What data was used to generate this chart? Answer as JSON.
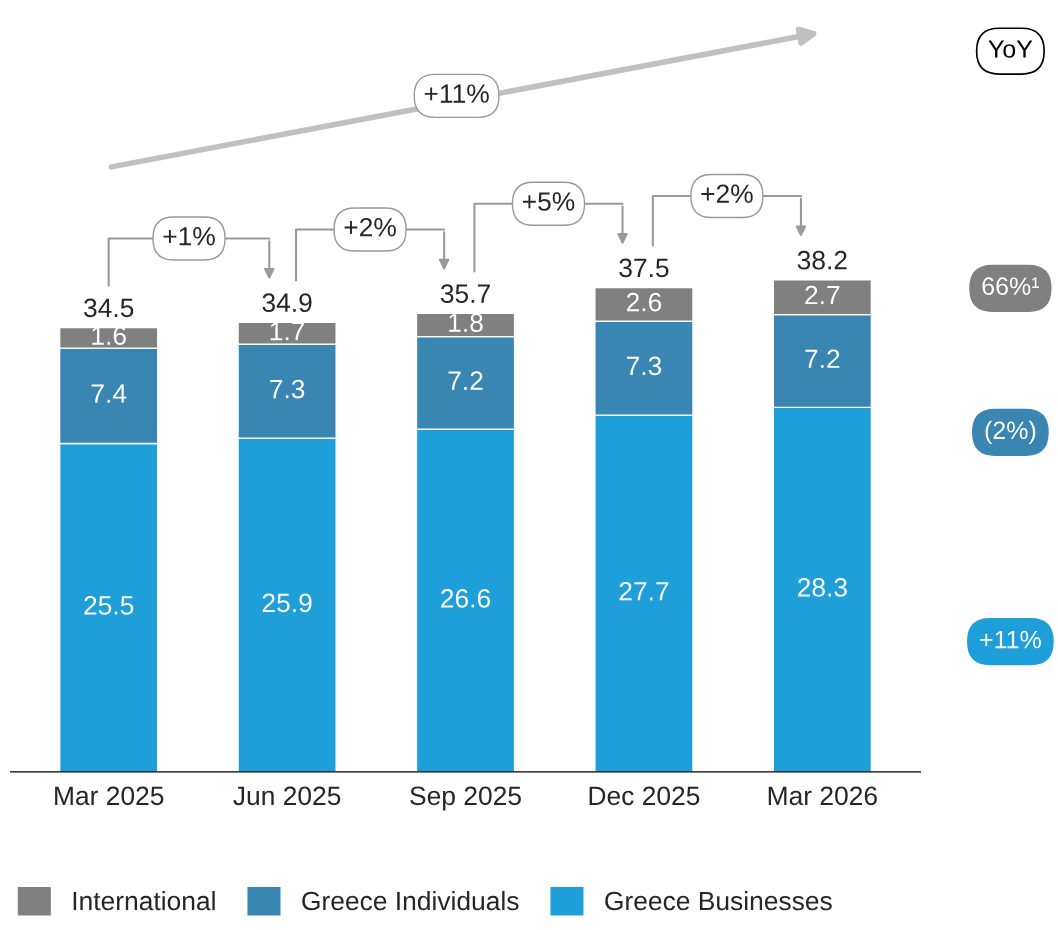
{
  "chart_data": {
    "type": "bar",
    "stacked": true,
    "data_labels": true,
    "legend": "bottom",
    "grid": false,
    "categories": [
      "Mar 2025",
      "Jun 2025",
      "Sep 2025",
      "Dec 2025",
      "Mar 2026"
    ],
    "series": [
      {
        "name": "Greece Businesses",
        "color": "#1e9fd9",
        "values": [
          25.5,
          25.9,
          26.6,
          27.7,
          28.3
        ]
      },
      {
        "name": "Greece Individuals",
        "color": "#3a86b3",
        "values": [
          7.4,
          7.3,
          7.2,
          7.3,
          7.2
        ]
      },
      {
        "name": "International",
        "color": "#808080",
        "values": [
          1.6,
          1.7,
          1.8,
          2.6,
          2.7
        ]
      }
    ],
    "totals": [
      "34.5",
      "34.9",
      "35.7",
      "37.5",
      "38.2"
    ],
    "annotations": [
      "+11%",
      "+1%",
      "+2%",
      "+5%",
      "+2%",
      "YoY",
      "66%¹",
      "(2%)",
      "+11%"
    ]
  }
}
